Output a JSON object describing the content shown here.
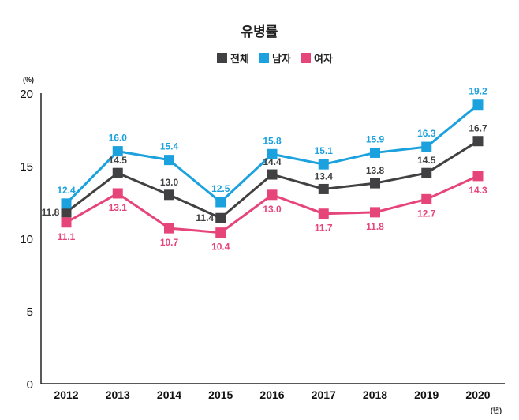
{
  "chart_data": {
    "type": "line",
    "title": "유병률",
    "ylabel": "(%)",
    "xlabel": "(년)",
    "ylim": [
      0,
      20
    ],
    "yticks": [
      0,
      5,
      10,
      15,
      20
    ],
    "grid": false,
    "legend_position": "top-center",
    "categories": [
      "2012",
      "2013",
      "2014",
      "2015",
      "2016",
      "2017",
      "2018",
      "2019",
      "2020"
    ],
    "series": [
      {
        "name": "전체",
        "color": "#414042",
        "values": [
          11.8,
          14.5,
          13.0,
          11.4,
          14.4,
          13.4,
          13.8,
          14.5,
          16.7
        ]
      },
      {
        "name": "남자",
        "color": "#1ba1dd",
        "values": [
          12.4,
          16.0,
          15.4,
          12.5,
          15.8,
          15.1,
          15.9,
          16.3,
          19.2
        ]
      },
      {
        "name": "여자",
        "color": "#e6457a",
        "values": [
          11.1,
          13.1,
          10.7,
          10.4,
          13.0,
          11.7,
          11.8,
          12.7,
          14.3
        ]
      }
    ]
  }
}
